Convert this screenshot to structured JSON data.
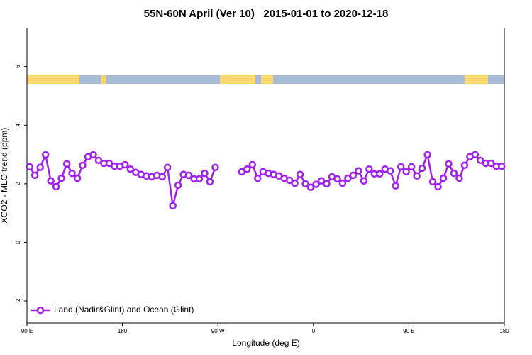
{
  "chart_data": {
    "type": "line",
    "title": "55N-60N April (Ver 10)   2015-01-01 to 2020-12-18",
    "x_label": "Longitude (deg E)",
    "y_label": "XCO2 - MLO trend (ppm)",
    "x": [
      92.5,
      97.5,
      102.5,
      107.5,
      112.5,
      117.5,
      122.5,
      127.5,
      132.5,
      137.5,
      142.5,
      147.5,
      152.5,
      157.5,
      162.5,
      167.5,
      172.5,
      177.5,
      182.5,
      187.5,
      192.5,
      197.5,
      202.5,
      207.5,
      212.5,
      217.5,
      222.5,
      227.5,
      232.5,
      237.5,
      242.5,
      247.5,
      252.5,
      257.5,
      262.5,
      267.5,
      272.5,
      277.5,
      282.5,
      287.5,
      292.5,
      297.5,
      302.5,
      307.5,
      312.5,
      317.5,
      322.5,
      327.5,
      332.5,
      337.5,
      342.5,
      347.5,
      352.5,
      357.5,
      362.5,
      367.5,
      372.5,
      377.5,
      382.5,
      387.5,
      392.5,
      397.5,
      402.5,
      407.5,
      412.5,
      417.5,
      422.5,
      427.5,
      432.5,
      437.5,
      442.5,
      447.5,
      452.5,
      457.5,
      462.5,
      467.5,
      472.5,
      477.5,
      482.5,
      487.5,
      492.5,
      497.5,
      502.5,
      507.5,
      512.5,
      517.5,
      522.5,
      527.5,
      532.5,
      537.5
    ],
    "series": [
      {
        "name": "Land (Nadir&Glint) and Ocean (Glint)",
        "color": "#a020f0",
        "values": [
          2.58,
          2.29,
          2.56,
          2.99,
          2.1,
          1.9,
          2.19,
          2.68,
          2.36,
          2.19,
          2.63,
          2.92,
          2.99,
          2.8,
          2.7,
          2.7,
          2.6,
          2.6,
          2.65,
          2.5,
          2.39,
          2.32,
          2.27,
          2.24,
          2.29,
          2.24,
          2.56,
          1.25,
          1.95,
          2.32,
          2.29,
          2.17,
          2.17,
          2.36,
          2.07,
          2.56,
          null,
          null,
          null,
          null,
          2.41,
          2.5,
          2.65,
          2.19,
          2.41,
          2.36,
          2.32,
          2.27,
          2.19,
          2.12,
          2.02,
          2.32,
          2.0,
          1.88,
          1.98,
          2.1,
          2.0,
          2.24,
          2.17,
          2.02,
          2.19,
          2.29,
          2.44,
          2.1,
          2.5,
          2.34,
          2.34,
          2.5,
          2.44,
          1.93,
          2.58,
          2.41,
          2.58,
          2.27,
          2.53,
          2.99,
          2.07,
          1.9,
          2.19,
          2.68,
          2.36,
          2.19,
          2.63,
          2.92,
          2.99,
          2.8,
          2.7,
          2.7,
          2.6,
          2.6
        ]
      }
    ],
    "xlim": [
      90,
      540
    ],
    "xticks": [
      {
        "value": 90,
        "label": "90 E"
      },
      180,
      {
        "value": 270,
        "label": "90 W"
      },
      {
        "value": 360,
        "label": "0"
      },
      {
        "value": 450,
        "label": "90 E"
      },
      {
        "value": 540,
        "label": "180"
      }
    ],
    "ylim": [
      -2.75,
      7.3
    ],
    "yticks": [
      -2,
      0,
      2,
      4,
      6
    ],
    "legend": "bottom-left"
  }
}
